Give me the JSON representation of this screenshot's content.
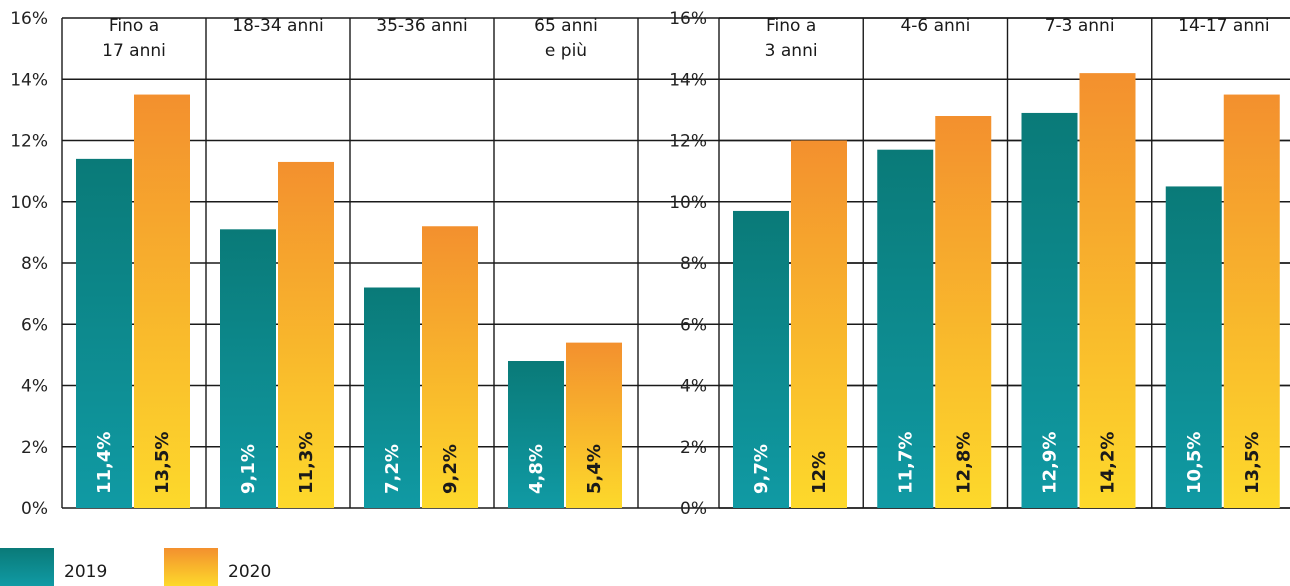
{
  "colors": {
    "teal_top": "#0a7a78",
    "teal_bottom": "#109aa4",
    "orange_top": "#f3902e",
    "orange_bottom": "#fdd92b",
    "label_on_teal": "#ffffff",
    "label_on_orange": "#1a1a1a",
    "grid": "#1a1a1a"
  },
  "chart_data": [
    {
      "type": "bar",
      "categories": [
        [
          "Fino a",
          "17 anni"
        ],
        [
          "18-34 anni"
        ],
        [
          "35-36 anni"
        ],
        [
          "65 anni",
          "e più"
        ]
      ],
      "series": [
        {
          "name": "2019",
          "values": [
            11.4,
            9.1,
            7.2,
            4.8
          ],
          "labels": [
            "11,4%",
            "9,1%",
            "7,2%",
            "4,8%"
          ]
        },
        {
          "name": "2020",
          "values": [
            13.5,
            11.3,
            9.2,
            5.4
          ],
          "labels": [
            "13,5%",
            "11,3%",
            "9,2%",
            "5,4%"
          ]
        }
      ],
      "ylim": [
        0,
        16
      ],
      "yticks": [
        "0%",
        "2%",
        "4%",
        "6%",
        "8%",
        "10%",
        "12%",
        "14%",
        "16%"
      ],
      "grid": true
    },
    {
      "type": "bar",
      "categories": [
        [
          "Fino a",
          "3 anni"
        ],
        [
          "4-6 anni"
        ],
        [
          "7-3 anni"
        ],
        [
          "14-17 anni"
        ]
      ],
      "series": [
        {
          "name": "2019",
          "values": [
            9.7,
            11.7,
            12.9,
            10.5
          ],
          "labels": [
            "9,7%",
            "11,7%",
            "12,9%",
            "10,5%"
          ]
        },
        {
          "name": "2020",
          "values": [
            12,
            12.8,
            14.2,
            13.5
          ],
          "labels": [
            "12%",
            "12,8%",
            "14,2%",
            "13,5%"
          ]
        }
      ],
      "ylim": [
        0,
        16
      ],
      "yticks": [
        "0%",
        "2%",
        "4%",
        "6%",
        "8%",
        "10%",
        "12%",
        "14%",
        "16%"
      ],
      "grid": true
    }
  ],
  "legend": {
    "position": "bottom-left",
    "items": [
      {
        "name": "2019"
      },
      {
        "name": "2020"
      }
    ]
  }
}
